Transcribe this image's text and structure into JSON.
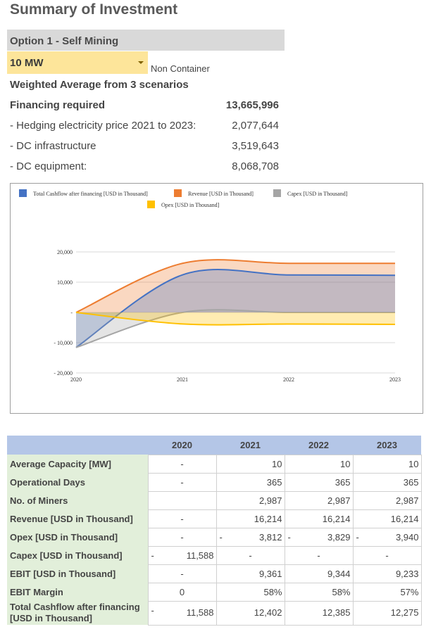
{
  "title": "Summary of Investment",
  "option": "Option 1 - Self Mining",
  "capacity_select": {
    "value": "10 MW"
  },
  "container_type": "Non Container",
  "weighted_note": "Weighted Average from 3 scenarios",
  "financing": [
    {
      "label": "Financing required",
      "value": "13,665,996"
    },
    {
      "label": "- Hedging electricity price 2021 to 2023:",
      "value": "2,077,644"
    },
    {
      "label": "- DC infrastructure",
      "value": "3,519,643"
    },
    {
      "label": "- DC equipment:",
      "value": "8,068,708"
    }
  ],
  "chart_data": {
    "type": "area",
    "x": [
      "2020",
      "2021",
      "2022",
      "2023"
    ],
    "ylim": [
      -20000,
      20000
    ],
    "yticks": [
      20000,
      10000,
      0,
      -10000,
      -20000
    ],
    "ytick_labels": [
      "20,000",
      "10,000",
      "-",
      "- 10,000",
      "- 20,000"
    ],
    "legend_position": "top",
    "series": [
      {
        "name": "Total Cashflow after financing [USD in Thousand]",
        "color": "#4472c4",
        "values": [
          -11588,
          12402,
          12385,
          12275
        ]
      },
      {
        "name": "Revenue [USD in Thousand]",
        "color": "#ed7d31",
        "values": [
          0,
          16214,
          16214,
          16214
        ]
      },
      {
        "name": "Capex [USD in Thousand]",
        "color": "#a5a5a5",
        "values": [
          -11588,
          0,
          0,
          0
        ]
      },
      {
        "name": "Opex [USD in Thousand]",
        "color": "#ffc000",
        "values": [
          0,
          -3812,
          -3829,
          -3940
        ]
      }
    ]
  },
  "table": {
    "years": [
      "2020",
      "2021",
      "2022",
      "2023"
    ],
    "rows": [
      {
        "label": "Average Capacity [MW]",
        "cells": [
          {
            "v": "-",
            "c": true
          },
          {
            "v": "10"
          },
          {
            "v": "10"
          },
          {
            "v": "10"
          }
        ]
      },
      {
        "label": "Operational Days",
        "cells": [
          {
            "v": "-",
            "c": true
          },
          {
            "v": "365"
          },
          {
            "v": "365"
          },
          {
            "v": "365"
          }
        ]
      },
      {
        "label": "No. of Miners",
        "cells": [
          {
            "v": ""
          },
          {
            "v": "2,987"
          },
          {
            "v": "2,987"
          },
          {
            "v": "2,987"
          }
        ]
      },
      {
        "label": "Revenue [USD in Thousand]",
        "cells": [
          {
            "v": "-",
            "c": true
          },
          {
            "v": "16,214"
          },
          {
            "v": "16,214"
          },
          {
            "v": "16,214"
          }
        ]
      },
      {
        "label": "Opex [USD in Thousand]",
        "cells": [
          {
            "v": "-",
            "c": true
          },
          {
            "n": "-",
            "v": "3,812"
          },
          {
            "n": "-",
            "v": "3,829"
          },
          {
            "n": "-",
            "v": "3,940"
          }
        ]
      },
      {
        "label": "Capex [USD in Thousand]",
        "cells": [
          {
            "n": "-",
            "v": "11,588"
          },
          {
            "v": "-",
            "c": true
          },
          {
            "v": "-",
            "c": true
          },
          {
            "v": "-",
            "c": true
          }
        ]
      },
      {
        "label": "EBIT [USD in Thousand]",
        "cells": [
          {
            "v": "-",
            "c": true
          },
          {
            "v": "9,361"
          },
          {
            "v": "9,344"
          },
          {
            "v": "9,233"
          }
        ]
      },
      {
        "label": "EBIT Margin",
        "cells": [
          {
            "v": "0",
            "c": true
          },
          {
            "v": "58%"
          },
          {
            "v": "58%"
          },
          {
            "v": "57%"
          }
        ]
      },
      {
        "label": "Total Cashflow after financing [USD in Thousand]",
        "tall": true,
        "cells": [
          {
            "n": "-",
            "v": "11,588"
          },
          {
            "v": "12,402"
          },
          {
            "v": "12,385"
          },
          {
            "v": "12,275"
          }
        ]
      }
    ]
  }
}
